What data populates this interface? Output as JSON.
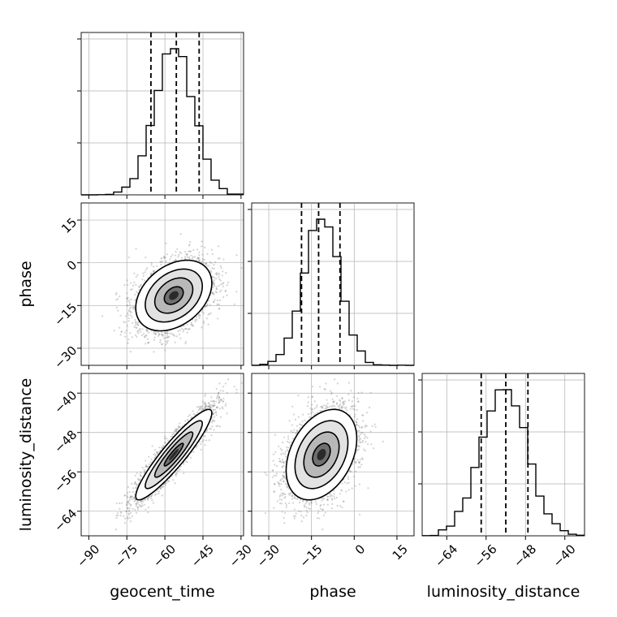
{
  "chart_data": {
    "type": "corner",
    "title": "",
    "grid": true,
    "parameters": [
      {
        "name": "geocent_time",
        "label": "geocent_time",
        "mean": -56.5,
        "sd": 7.5,
        "range": [
          -93,
          -29
        ],
        "ticks": [
          -90,
          -75,
          -60,
          -45,
          -30
        ],
        "quantiles": [
          -65.5,
          -55.5,
          -46.5
        ]
      },
      {
        "name": "phase",
        "label": "phase",
        "mean": -11.5,
        "sd": 6.2,
        "range": [
          -36,
          21
        ],
        "ticks": [
          -30,
          -15,
          0,
          15
        ],
        "quantiles": [
          -18.5,
          -12.5,
          -5.0
        ]
      },
      {
        "name": "luminosity_distance",
        "label": "luminosity_distance",
        "mean": -52.5,
        "sd": 4.6,
        "range": [
          -69,
          -36
        ],
        "ticks": [
          -64,
          -56,
          -48,
          -40
        ],
        "quantiles": [
          -57.0,
          -52.0,
          -47.5
        ]
      }
    ],
    "correlations": {
      "geocent_time|phase": 0.35,
      "geocent_time|luminosity_distance": 0.92,
      "phase|luminosity_distance": 0.35
    },
    "tick_labels": {
      "geocent_time": [
        "−90",
        "−75",
        "−60",
        "−45",
        "−30"
      ],
      "phase": [
        "−30",
        "−15",
        "0",
        "15"
      ],
      "luminosity_distance": [
        "−64",
        "−56",
        "−48",
        "−40"
      ]
    },
    "contour_levels_sigma": [
      0.5,
      1.0,
      1.5,
      2.0
    ],
    "colors": {
      "contour": "#000000",
      "points": "#808080",
      "quantile_line": "#000000",
      "grid": "#b0b0b0"
    }
  }
}
